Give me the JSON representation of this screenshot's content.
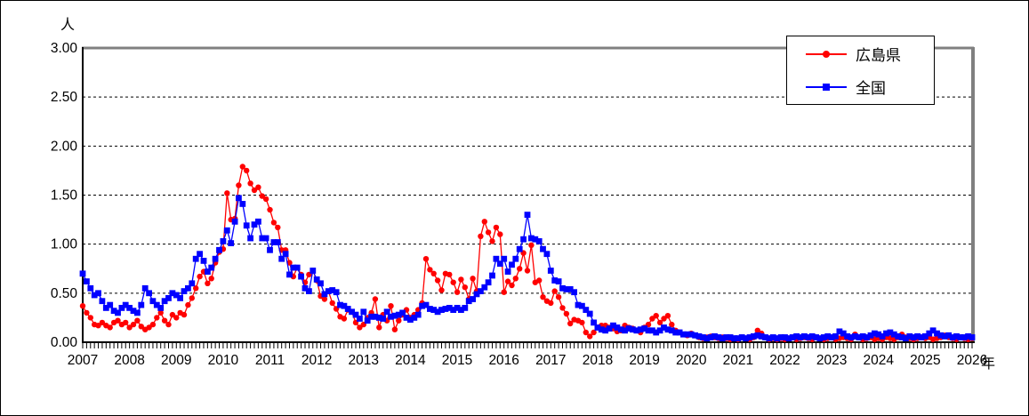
{
  "axes": {
    "y_unit": "人",
    "x_unit": "年"
  },
  "legend": {
    "items": [
      {
        "label": "広島県",
        "color": "#ff0000",
        "marker": "circle"
      },
      {
        "label": "全国",
        "color": "#0000ff",
        "marker": "square"
      }
    ]
  },
  "chart_data": {
    "type": "line",
    "title": "",
    "ylabel": "人",
    "xlabel": "年",
    "ylim": [
      0,
      3
    ],
    "xlim": [
      2007,
      2026
    ],
    "y_tick_step": 0.5,
    "y_tick_labels": [
      "3.00",
      "2.50",
      "2.00",
      "1.50",
      "1.00",
      "0.50",
      "0.00"
    ],
    "x_tick_labels": [
      "2007",
      "2008",
      "2009",
      "2010",
      "2011",
      "2012",
      "2013",
      "2014",
      "2015",
      "2016",
      "2017",
      "2018",
      "2019",
      "2020",
      "2021",
      "2022",
      "2023",
      "2024",
      "2025",
      "2026"
    ],
    "x_start": 2007,
    "x_step": 0.0833333,
    "grid": "horizontal-dashed",
    "legend_position": "top-right",
    "series": [
      {
        "name": "広島県",
        "color": "#ff0000",
        "marker": "circle",
        "values": [
          0.37,
          0.3,
          0.25,
          0.18,
          0.17,
          0.2,
          0.17,
          0.15,
          0.2,
          0.22,
          0.18,
          0.2,
          0.15,
          0.18,
          0.22,
          0.16,
          0.13,
          0.15,
          0.18,
          0.25,
          0.3,
          0.22,
          0.18,
          0.28,
          0.25,
          0.3,
          0.28,
          0.38,
          0.45,
          0.55,
          0.67,
          0.72,
          0.6,
          0.65,
          0.81,
          0.92,
          0.95,
          1.52,
          1.25,
          1.26,
          1.6,
          1.79,
          1.75,
          1.62,
          1.55,
          1.58,
          1.49,
          1.46,
          1.35,
          1.22,
          1.17,
          0.94,
          0.94,
          0.81,
          0.67,
          0.76,
          0.69,
          0.61,
          0.69,
          0.73,
          0.63,
          0.47,
          0.44,
          0.52,
          0.4,
          0.34,
          0.26,
          0.24,
          0.33,
          0.31,
          0.2,
          0.15,
          0.18,
          0.25,
          0.3,
          0.44,
          0.15,
          0.28,
          0.22,
          0.37,
          0.13,
          0.22,
          0.28,
          0.33,
          0.25,
          0.28,
          0.33,
          0.4,
          0.85,
          0.74,
          0.7,
          0.63,
          0.53,
          0.7,
          0.69,
          0.61,
          0.51,
          0.64,
          0.56,
          0.44,
          0.65,
          0.52,
          1.08,
          1.23,
          1.12,
          1.03,
          1.17,
          1.1,
          0.51,
          0.62,
          0.58,
          0.65,
          0.75,
          0.91,
          0.73,
          0.99,
          0.61,
          0.63,
          0.46,
          0.42,
          0.4,
          0.52,
          0.46,
          0.35,
          0.29,
          0.19,
          0.23,
          0.22,
          0.2,
          0.1,
          0.06,
          0.1,
          0.15,
          0.17,
          0.17,
          0.15,
          0.14,
          0.11,
          0.12,
          0.17,
          0.15,
          0.14,
          0.12,
          0.1,
          0.15,
          0.18,
          0.24,
          0.27,
          0.2,
          0.24,
          0.27,
          0.18,
          0.12,
          0.1,
          0.08,
          0.07,
          0.09,
          0.07,
          0.05,
          0.04,
          0.05,
          0.06,
          0.05,
          0.04,
          0.05,
          0.04,
          0.03,
          0.04,
          0.03,
          0.05,
          0.04,
          0.03,
          0.05,
          0.12,
          0.09,
          0.05,
          0.03,
          0.04,
          0.03,
          0.04,
          0.03,
          0.04,
          0.05,
          0.03,
          0.04,
          0.05,
          0.04,
          0.03,
          0.05,
          0.04,
          0.03,
          0.04,
          0.05,
          0.03,
          0.04,
          0.05,
          0.04,
          0.03,
          0.08,
          0.05,
          0.03,
          0.04,
          0.05,
          0.03,
          0.04,
          0.03,
          0.05,
          0.04,
          0.03,
          0.05,
          0.08,
          0.05,
          0.04,
          0.03,
          0.04,
          0.05,
          0.04,
          0.05,
          0.03,
          0.04,
          0.05,
          0.07,
          0.05,
          0.04,
          0.03,
          0.05,
          0.04,
          0.03,
          0.04
        ]
      },
      {
        "name": "全国",
        "color": "#0000ff",
        "marker": "square",
        "values": [
          0.7,
          0.62,
          0.55,
          0.48,
          0.5,
          0.42,
          0.35,
          0.38,
          0.32,
          0.3,
          0.35,
          0.38,
          0.35,
          0.32,
          0.3,
          0.38,
          0.55,
          0.5,
          0.42,
          0.38,
          0.35,
          0.42,
          0.45,
          0.5,
          0.48,
          0.45,
          0.52,
          0.55,
          0.6,
          0.85,
          0.9,
          0.83,
          0.72,
          0.76,
          0.85,
          0.94,
          1.03,
          1.14,
          1.01,
          1.23,
          1.47,
          1.41,
          1.19,
          1.06,
          1.2,
          1.23,
          1.06,
          1.06,
          0.94,
          1.02,
          1.02,
          0.85,
          0.9,
          0.69,
          0.76,
          0.76,
          0.67,
          0.55,
          0.52,
          0.73,
          0.64,
          0.6,
          0.49,
          0.52,
          0.53,
          0.51,
          0.38,
          0.37,
          0.34,
          0.31,
          0.28,
          0.24,
          0.31,
          0.22,
          0.26,
          0.26,
          0.25,
          0.24,
          0.31,
          0.26,
          0.27,
          0.28,
          0.3,
          0.25,
          0.23,
          0.25,
          0.28,
          0.37,
          0.38,
          0.34,
          0.33,
          0.31,
          0.33,
          0.34,
          0.35,
          0.33,
          0.35,
          0.33,
          0.35,
          0.42,
          0.44,
          0.49,
          0.52,
          0.56,
          0.61,
          0.68,
          0.85,
          0.8,
          0.85,
          0.72,
          0.79,
          0.85,
          0.95,
          1.05,
          1.3,
          1.06,
          1.05,
          1.03,
          0.95,
          0.9,
          0.73,
          0.63,
          0.62,
          0.55,
          0.54,
          0.54,
          0.51,
          0.38,
          0.37,
          0.33,
          0.29,
          0.2,
          0.15,
          0.13,
          0.12,
          0.14,
          0.17,
          0.15,
          0.13,
          0.12,
          0.14,
          0.13,
          0.12,
          0.13,
          0.14,
          0.12,
          0.12,
          0.1,
          0.12,
          0.15,
          0.13,
          0.12,
          0.1,
          0.1,
          0.08,
          0.08,
          0.08,
          0.07,
          0.06,
          0.05,
          0.04,
          0.05,
          0.06,
          0.05,
          0.04,
          0.05,
          0.05,
          0.04,
          0.04,
          0.05,
          0.04,
          0.05,
          0.06,
          0.07,
          0.06,
          0.05,
          0.04,
          0.05,
          0.04,
          0.05,
          0.05,
          0.04,
          0.05,
          0.06,
          0.05,
          0.06,
          0.05,
          0.06,
          0.05,
          0.04,
          0.05,
          0.06,
          0.05,
          0.06,
          0.11,
          0.09,
          0.06,
          0.05,
          0.06,
          0.05,
          0.06,
          0.05,
          0.07,
          0.09,
          0.08,
          0.06,
          0.09,
          0.1,
          0.08,
          0.06,
          0.05,
          0.04,
          0.06,
          0.05,
          0.06,
          0.05,
          0.06,
          0.09,
          0.12,
          0.09,
          0.07,
          0.06,
          0.07,
          0.05,
          0.06,
          0.05,
          0.05,
          0.06,
          0.05
        ]
      }
    ]
  }
}
